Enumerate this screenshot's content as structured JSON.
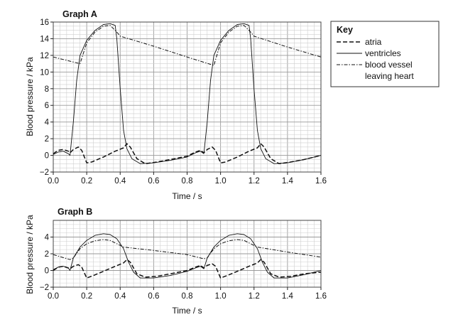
{
  "chart_data": [
    {
      "type": "line",
      "title": "Graph A",
      "xlabel": "Time / s",
      "ylabel": "Blood pressure / kPa",
      "xlim": [
        0,
        1.6
      ],
      "ylim": [
        -2,
        16
      ],
      "x_ticks": [
        "0.0",
        "0.2",
        "0.4",
        "0.6",
        "0.8",
        "1.0",
        "1.2",
        "1.4",
        "1.6"
      ],
      "y_ticks": [
        "−2",
        "0",
        "2",
        "4",
        "6",
        "8",
        "10",
        "12",
        "14",
        "16"
      ],
      "grid": true,
      "series": [
        {
          "name": "atria",
          "style": "dashed",
          "points": [
            [
              0,
              0.2
            ],
            [
              0.03,
              0.6
            ],
            [
              0.06,
              0.7
            ],
            [
              0.09,
              0.5
            ],
            [
              0.1,
              0.3
            ],
            [
              0.12,
              0.7
            ],
            [
              0.15,
              1.0
            ],
            [
              0.17,
              0.6
            ],
            [
              0.2,
              -0.9
            ],
            [
              0.23,
              -0.8
            ],
            [
              0.3,
              -0.2
            ],
            [
              0.37,
              0.5
            ],
            [
              0.42,
              0.9
            ],
            [
              0.44,
              1.4
            ],
            [
              0.46,
              1.0
            ],
            [
              0.5,
              -0.4
            ],
            [
              0.55,
              -1.0
            ],
            [
              0.62,
              -0.8
            ],
            [
              0.7,
              -0.5
            ],
            [
              0.8,
              -0.1
            ],
            [
              0.85,
              0.4
            ],
            [
              0.88,
              0.6
            ],
            [
              0.9,
              0.3
            ],
            [
              0.92,
              0.7
            ],
            [
              0.95,
              1.0
            ],
            [
              0.97,
              0.6
            ],
            [
              1.0,
              -0.9
            ],
            [
              1.03,
              -0.8
            ],
            [
              1.1,
              -0.2
            ],
            [
              1.17,
              0.5
            ],
            [
              1.22,
              0.9
            ],
            [
              1.24,
              1.4
            ],
            [
              1.26,
              1.0
            ],
            [
              1.3,
              -0.4
            ],
            [
              1.35,
              -1.0
            ],
            [
              1.42,
              -0.8
            ],
            [
              1.5,
              -0.5
            ],
            [
              1.6,
              0.0
            ]
          ]
        },
        {
          "name": "ventricles",
          "style": "solid",
          "points": [
            [
              0,
              0.1
            ],
            [
              0.03,
              0.4
            ],
            [
              0.06,
              0.5
            ],
            [
              0.09,
              0.2
            ],
            [
              0.1,
              0.0
            ],
            [
              0.12,
              4.0
            ],
            [
              0.14,
              9.0
            ],
            [
              0.16,
              12.0
            ],
            [
              0.2,
              13.8
            ],
            [
              0.25,
              15.0
            ],
            [
              0.3,
              15.7
            ],
            [
              0.34,
              15.8
            ],
            [
              0.37,
              15.6
            ],
            [
              0.38,
              14.0
            ],
            [
              0.4,
              8.0
            ],
            [
              0.42,
              3.0
            ],
            [
              0.44,
              0.8
            ],
            [
              0.47,
              -0.4
            ],
            [
              0.52,
              -1.0
            ],
            [
              0.6,
              -0.9
            ],
            [
              0.7,
              -0.6
            ],
            [
              0.8,
              -0.2
            ],
            [
              0.85,
              0.3
            ],
            [
              0.88,
              0.5
            ],
            [
              0.9,
              0.2
            ],
            [
              0.92,
              4.0
            ],
            [
              0.94,
              9.0
            ],
            [
              0.96,
              12.0
            ],
            [
              1.0,
              13.8
            ],
            [
              1.05,
              15.0
            ],
            [
              1.1,
              15.7
            ],
            [
              1.14,
              15.8
            ],
            [
              1.17,
              15.6
            ],
            [
              1.18,
              14.0
            ],
            [
              1.2,
              8.0
            ],
            [
              1.22,
              3.0
            ],
            [
              1.24,
              0.8
            ],
            [
              1.27,
              -0.4
            ],
            [
              1.32,
              -1.0
            ],
            [
              1.4,
              -0.9
            ],
            [
              1.5,
              -0.5
            ],
            [
              1.6,
              0.0
            ]
          ]
        },
        {
          "name": "blood vessel leaving heart",
          "style": "dash-dot",
          "points": [
            [
              0,
              11.8
            ],
            [
              0.16,
              11.0
            ],
            [
              0.2,
              13.5
            ],
            [
              0.25,
              14.8
            ],
            [
              0.3,
              15.5
            ],
            [
              0.34,
              15.6
            ],
            [
              0.38,
              14.8
            ],
            [
              0.4,
              14.3
            ],
            [
              0.6,
              13.1
            ],
            [
              0.8,
              11.8
            ],
            [
              0.96,
              10.8
            ],
            [
              1.0,
              13.5
            ],
            [
              1.05,
              14.8
            ],
            [
              1.1,
              15.5
            ],
            [
              1.14,
              15.6
            ],
            [
              1.18,
              14.8
            ],
            [
              1.2,
              14.3
            ],
            [
              1.4,
              13.0
            ],
            [
              1.6,
              11.8
            ]
          ]
        }
      ]
    },
    {
      "type": "line",
      "title": "Graph B",
      "xlabel": "Time / s",
      "ylabel": "Blood pressure / kPa",
      "xlim": [
        0,
        1.6
      ],
      "ylim": [
        -2,
        6
      ],
      "x_ticks": [
        "0.0",
        "0.2",
        "0.4",
        "0.6",
        "0.8",
        "1.0",
        "1.2",
        "1.4",
        "1.6"
      ],
      "y_ticks": [
        "−2",
        "0",
        "2",
        "4"
      ],
      "grid": true,
      "series": [
        {
          "name": "atria",
          "style": "dashed",
          "points": [
            [
              0,
              0.0
            ],
            [
              0.03,
              0.4
            ],
            [
              0.06,
              0.5
            ],
            [
              0.09,
              0.3
            ],
            [
              0.1,
              0.2
            ],
            [
              0.12,
              0.5
            ],
            [
              0.15,
              0.7
            ],
            [
              0.17,
              0.4
            ],
            [
              0.2,
              -0.9
            ],
            [
              0.24,
              -0.6
            ],
            [
              0.3,
              -0.1
            ],
            [
              0.37,
              0.5
            ],
            [
              0.42,
              0.9
            ],
            [
              0.44,
              1.3
            ],
            [
              0.46,
              1.0
            ],
            [
              0.5,
              -0.4
            ],
            [
              0.55,
              -0.8
            ],
            [
              0.62,
              -0.7
            ],
            [
              0.7,
              -0.4
            ],
            [
              0.8,
              0.0
            ],
            [
              0.85,
              0.4
            ],
            [
              0.88,
              0.6
            ],
            [
              0.9,
              0.3
            ],
            [
              0.92,
              0.6
            ],
            [
              0.95,
              0.8
            ],
            [
              0.97,
              0.5
            ],
            [
              1.0,
              -0.9
            ],
            [
              1.04,
              -0.6
            ],
            [
              1.1,
              -0.1
            ],
            [
              1.17,
              0.5
            ],
            [
              1.22,
              0.9
            ],
            [
              1.24,
              1.3
            ],
            [
              1.26,
              1.0
            ],
            [
              1.3,
              -0.4
            ],
            [
              1.35,
              -0.8
            ],
            [
              1.42,
              -0.7
            ],
            [
              1.5,
              -0.4
            ],
            [
              1.6,
              -0.2
            ]
          ]
        },
        {
          "name": "ventricles",
          "style": "solid",
          "points": [
            [
              0,
              0.1
            ],
            [
              0.03,
              0.4
            ],
            [
              0.06,
              0.5
            ],
            [
              0.09,
              0.3
            ],
            [
              0.1,
              0.0
            ],
            [
              0.12,
              1.5
            ],
            [
              0.16,
              2.8
            ],
            [
              0.2,
              3.6
            ],
            [
              0.25,
              4.2
            ],
            [
              0.3,
              4.4
            ],
            [
              0.34,
              4.3
            ],
            [
              0.38,
              3.8
            ],
            [
              0.42,
              2.6
            ],
            [
              0.45,
              1.0
            ],
            [
              0.48,
              -0.2
            ],
            [
              0.52,
              -0.9
            ],
            [
              0.6,
              -0.9
            ],
            [
              0.7,
              -0.6
            ],
            [
              0.8,
              -0.1
            ],
            [
              0.85,
              0.3
            ],
            [
              0.88,
              0.5
            ],
            [
              0.9,
              0.2
            ],
            [
              0.92,
              1.5
            ],
            [
              0.96,
              2.8
            ],
            [
              1.0,
              3.6
            ],
            [
              1.05,
              4.2
            ],
            [
              1.1,
              4.4
            ],
            [
              1.14,
              4.3
            ],
            [
              1.18,
              3.8
            ],
            [
              1.22,
              2.6
            ],
            [
              1.25,
              1.0
            ],
            [
              1.28,
              -0.2
            ],
            [
              1.32,
              -0.9
            ],
            [
              1.4,
              -0.9
            ],
            [
              1.5,
              -0.5
            ],
            [
              1.6,
              0.0
            ]
          ]
        },
        {
          "name": "blood vessel leaving heart",
          "style": "dash-dot",
          "points": [
            [
              0,
              1.9
            ],
            [
              0.1,
              1.3
            ],
            [
              0.12,
              1.5
            ],
            [
              0.16,
              2.6
            ],
            [
              0.2,
              3.2
            ],
            [
              0.25,
              3.55
            ],
            [
              0.3,
              3.7
            ],
            [
              0.34,
              3.6
            ],
            [
              0.38,
              3.2
            ],
            [
              0.42,
              2.8
            ],
            [
              0.6,
              2.4
            ],
            [
              0.8,
              1.9
            ],
            [
              0.9,
              1.4
            ],
            [
              0.92,
              1.5
            ],
            [
              0.96,
              2.6
            ],
            [
              1.0,
              3.2
            ],
            [
              1.05,
              3.55
            ],
            [
              1.1,
              3.7
            ],
            [
              1.14,
              3.6
            ],
            [
              1.18,
              3.2
            ],
            [
              1.22,
              2.8
            ],
            [
              1.4,
              2.2
            ],
            [
              1.6,
              1.6
            ]
          ]
        }
      ]
    }
  ],
  "key": {
    "title": "Key",
    "items": [
      {
        "label": "atria",
        "style": "dashed"
      },
      {
        "label": "ventricles",
        "style": "solid"
      },
      {
        "label": "blood vessel",
        "label_line2": "leaving heart",
        "style": "dash-dot"
      }
    ]
  }
}
